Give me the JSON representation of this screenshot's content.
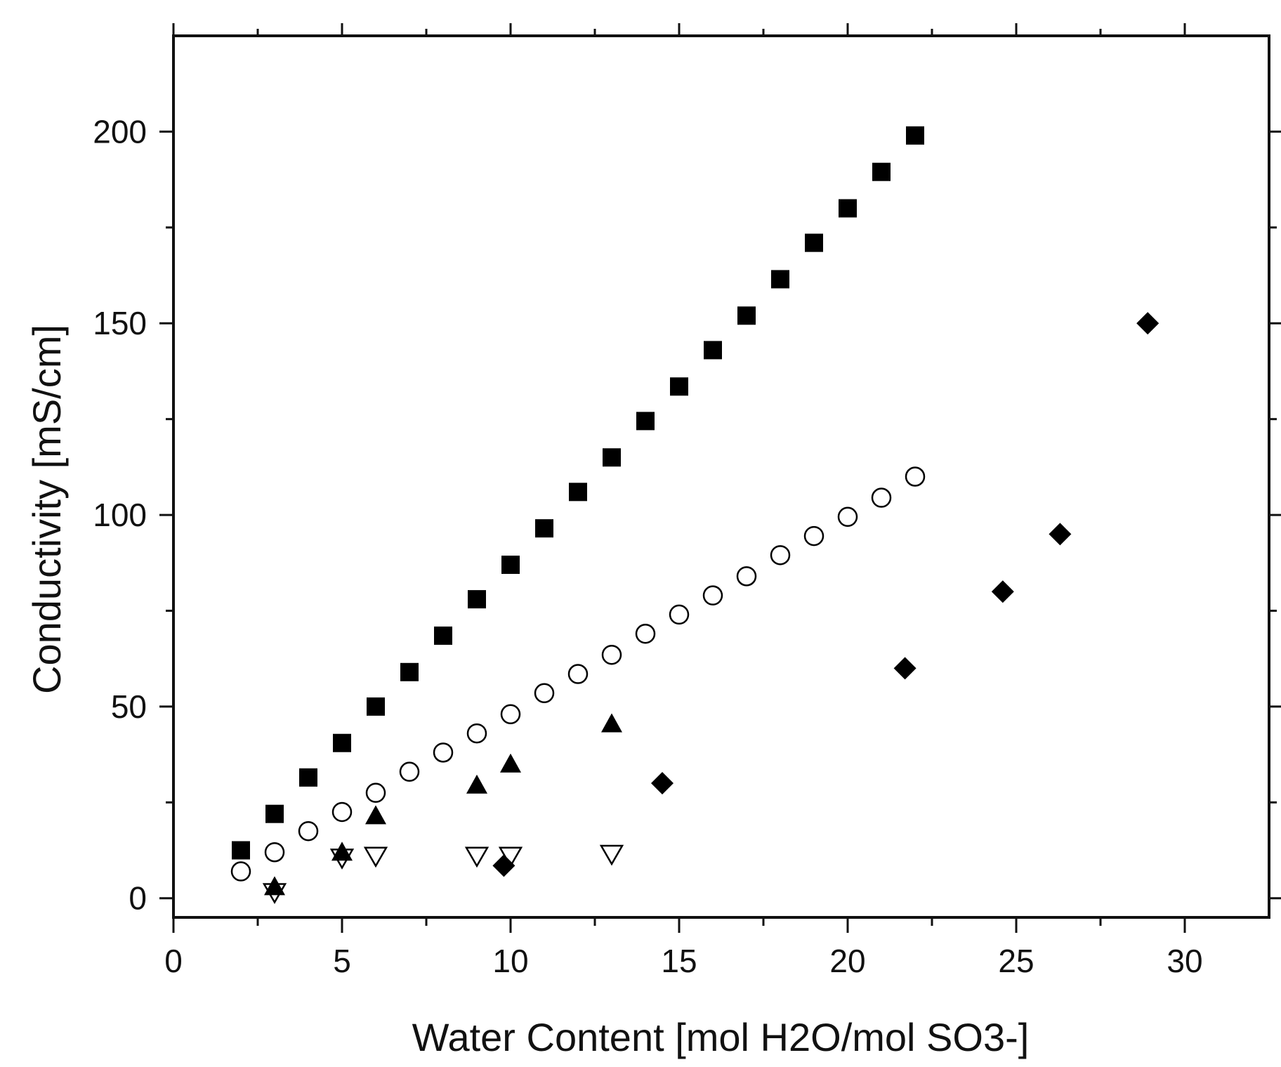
{
  "chart_data": {
    "type": "scatter",
    "title": "",
    "xlabel": "Water Content [mol H2O/mol SO3-]",
    "ylabel": "Conductivity [mS/cm]",
    "xlim": [
      0,
      32.5
    ],
    "ylim": [
      -5,
      225
    ],
    "x_ticks": [
      0,
      5,
      10,
      15,
      20,
      25,
      30
    ],
    "x_tick_labels": [
      "0",
      "5",
      "10",
      "15",
      "20",
      "25",
      "30"
    ],
    "y_ticks": [
      0,
      50,
      100,
      150,
      200
    ],
    "y_tick_labels": [
      "0",
      "50",
      "100",
      "150",
      "200"
    ],
    "grid": false,
    "legend": "none",
    "colors": {
      "marker": "#000000",
      "axis": "#111111",
      "background": "#ffffff"
    },
    "series": [
      {
        "marker": "filled-square",
        "x": [
          2,
          3,
          4,
          5,
          6,
          7,
          8,
          9,
          10,
          11,
          12,
          13,
          14,
          15,
          16,
          17,
          18,
          19,
          20,
          21,
          22
        ],
        "y": [
          12.5,
          22,
          31.5,
          40.5,
          50,
          59,
          68.5,
          78,
          87,
          96.5,
          106,
          115,
          124.5,
          133.5,
          143,
          152,
          161.5,
          171,
          180,
          189.5,
          199
        ]
      },
      {
        "marker": "open-circle",
        "x": [
          2,
          3,
          4,
          5,
          6,
          7,
          8,
          9,
          10,
          11,
          12,
          13,
          14,
          15,
          16,
          17,
          18,
          19,
          20,
          21,
          22
        ],
        "y": [
          7,
          12,
          17.5,
          22.5,
          27.5,
          33,
          38,
          43,
          48,
          53.5,
          58.5,
          63.5,
          69,
          74,
          79,
          84,
          89.5,
          94.5,
          99.5,
          104.5,
          110
        ]
      },
      {
        "marker": "filled-triangle-up",
        "x": [
          3,
          5,
          6,
          9,
          10,
          13
        ],
        "y": [
          3,
          12,
          21.5,
          29.5,
          35,
          45.5
        ]
      },
      {
        "marker": "open-triangle-down",
        "x": [
          3,
          5,
          6,
          9,
          10,
          13
        ],
        "y": [
          1.5,
          10.5,
          11,
          11,
          11,
          11.5
        ]
      },
      {
        "marker": "filled-diamond",
        "x": [
          9.8,
          14.5,
          21.7,
          24.6,
          26.3,
          28.9
        ],
        "y": [
          8.5,
          30,
          60,
          80,
          95,
          150
        ]
      }
    ]
  }
}
